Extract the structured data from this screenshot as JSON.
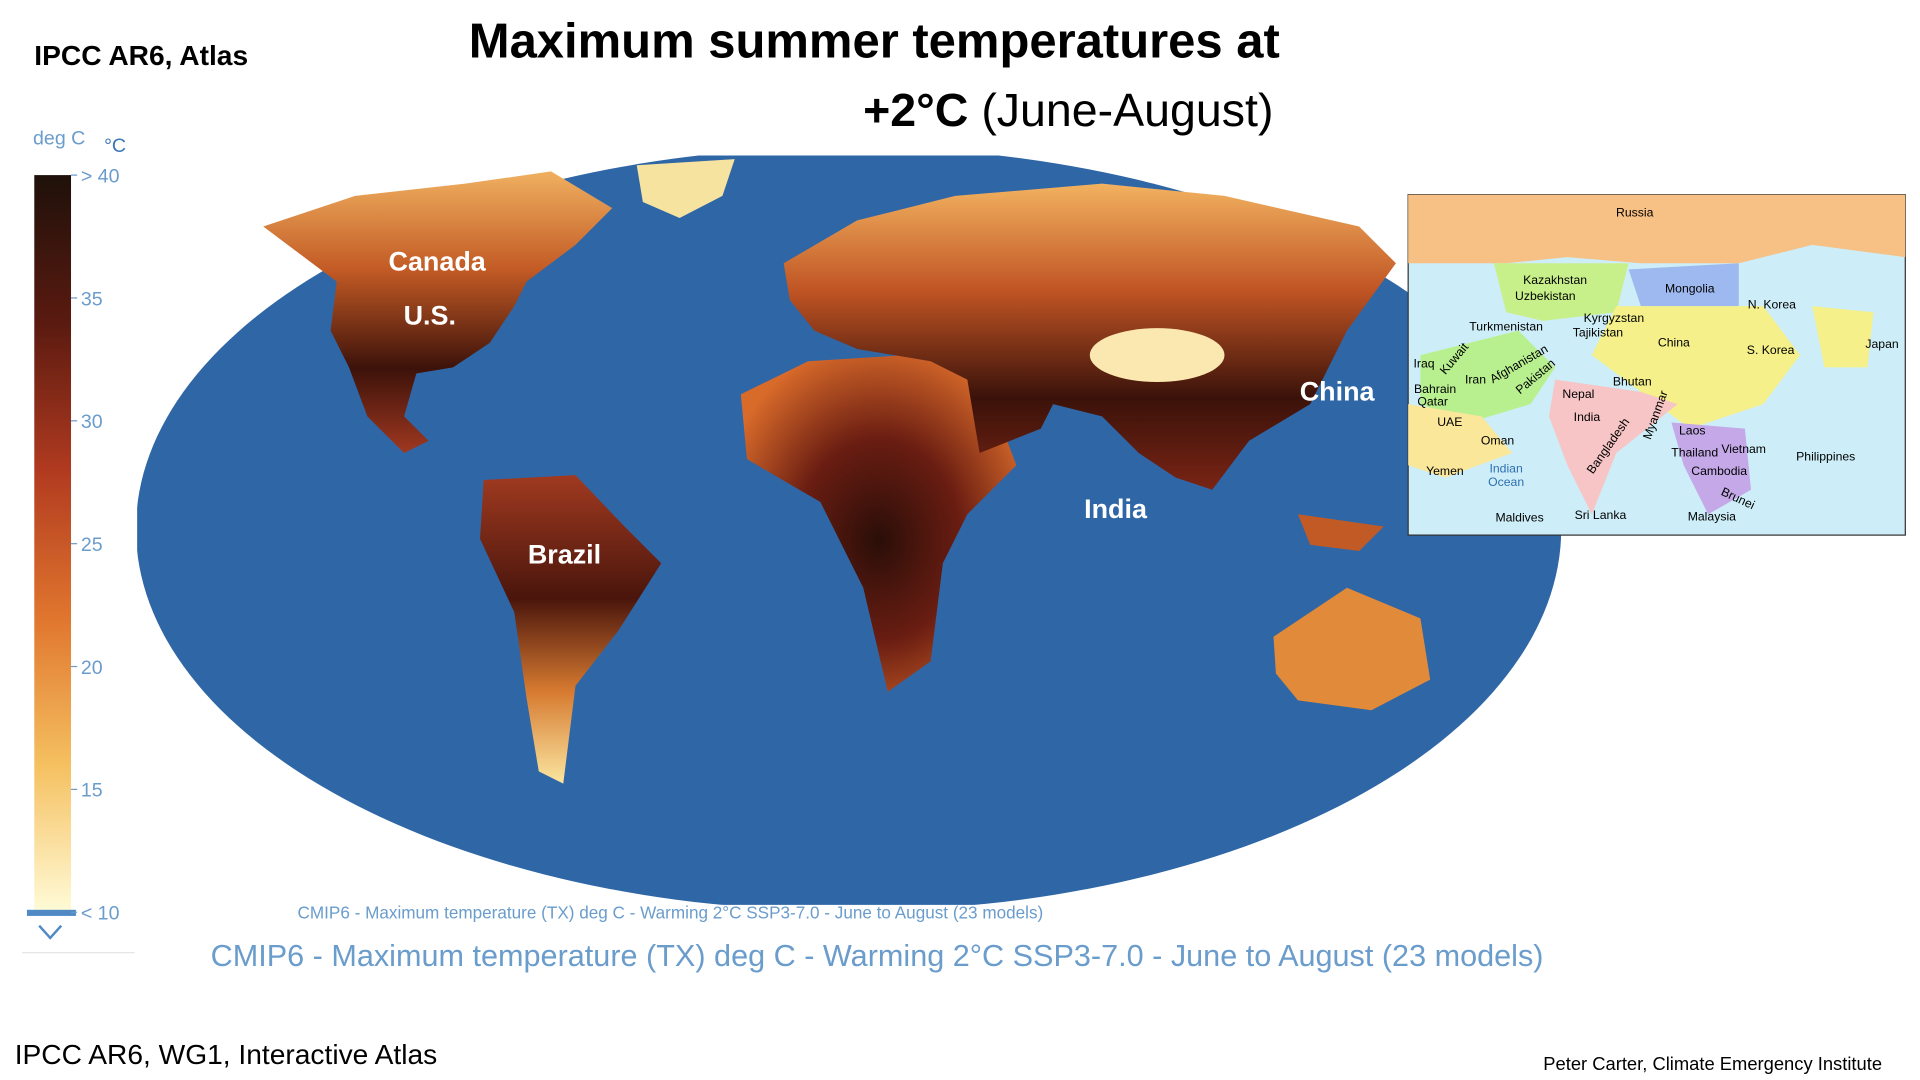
{
  "header": {
    "source": "IPCC AR6, Atlas",
    "title_line1": "Maximum summer temperatures at",
    "title_line2_bold": "+2°C",
    "title_line2_rest": "(June-August)"
  },
  "colorbar": {
    "unit": "deg C",
    "unit_symbol": "°C",
    "ticks": [
      {
        "value": 40,
        "label": "> 40"
      },
      35,
      30,
      25,
      20,
      15,
      {
        "value": 10,
        "label": "< 10"
      }
    ]
  },
  "map": {
    "labels": [
      "Canada",
      "U.S.",
      "Brazil",
      "India",
      "China"
    ],
    "caption_small": "CMIP6 - Maximum temperature (TX) deg C - Warming 2°C SSP3-7.0 - June to August (23 models)",
    "caption": "CMIP6 - Maximum temperature (TX) deg C - Warming 2°C SSP3-7.0 - June to August (23 models)"
  },
  "inset": {
    "labels": [
      "Russia",
      "Kazakhstan",
      "Uzbekistan",
      "Mongolia",
      "N. Korea",
      "Japan",
      "China",
      "S. Korea",
      "Turkmenistan",
      "Kyrgyzstan",
      "Tajikistan",
      "Iran",
      "Afghanistan",
      "Pakistan",
      "Iraq",
      "Kuwait",
      "Bahrain",
      "Qatar",
      "UAE",
      "Oman",
      "Yemen",
      "Nepal",
      "Bhutan",
      "India",
      "Bangladesh",
      "Myanmar",
      "Laos",
      "Thailand",
      "Cambodia",
      "Vietnam",
      "Philippines",
      "Brunei",
      "Malaysia",
      "Sri Lanka",
      "Maldives",
      "Indian",
      "Ocean"
    ]
  },
  "footer": {
    "source": "IPCC AR6, WG1, Interactive Atlas",
    "credit": "Peter Carter, Climate Emergency Institute"
  }
}
